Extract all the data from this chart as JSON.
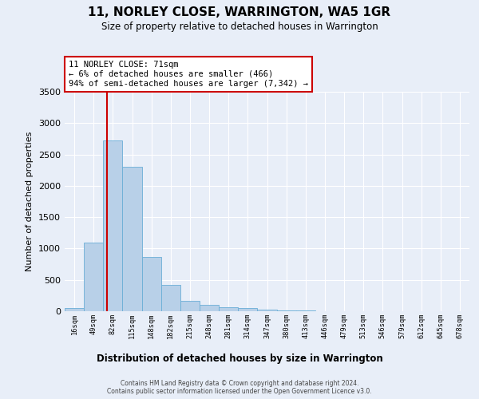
{
  "title": "11, NORLEY CLOSE, WARRINGTON, WA5 1GR",
  "subtitle": "Size of property relative to detached houses in Warrington",
  "xlabel": "Distribution of detached houses by size in Warrington",
  "ylabel": "Number of detached properties",
  "bar_categories": [
    "16sqm",
    "49sqm",
    "82sqm",
    "115sqm",
    "148sqm",
    "182sqm",
    "215sqm",
    "248sqm",
    "281sqm",
    "314sqm",
    "347sqm",
    "380sqm",
    "413sqm",
    "446sqm",
    "479sqm",
    "513sqm",
    "546sqm",
    "579sqm",
    "612sqm",
    "645sqm",
    "678sqm"
  ],
  "bar_values": [
    50,
    1100,
    2720,
    2300,
    870,
    420,
    160,
    100,
    70,
    50,
    30,
    15,
    10,
    5,
    3,
    2,
    1,
    1,
    0,
    0,
    0
  ],
  "bar_color": "#b8d0e8",
  "bar_edge_color": "#6aaed6",
  "background_color": "#e8eef8",
  "axes_background": "#e8eef8",
  "grid_color": "#ffffff",
  "ylim": [
    0,
    3500
  ],
  "yticks": [
    0,
    500,
    1000,
    1500,
    2000,
    2500,
    3000,
    3500
  ],
  "annotation_text": "11 NORLEY CLOSE: 71sqm\n← 6% of detached houses are smaller (466)\n94% of semi-detached houses are larger (7,342) →",
  "annotation_box_facecolor": "#ffffff",
  "annotation_box_edgecolor": "#cc0000",
  "vline_x_index": 1.68,
  "vline_color": "#cc0000",
  "footer_line1": "Contains HM Land Registry data © Crown copyright and database right 2024.",
  "footer_line2": "Contains public sector information licensed under the Open Government Licence v3.0."
}
